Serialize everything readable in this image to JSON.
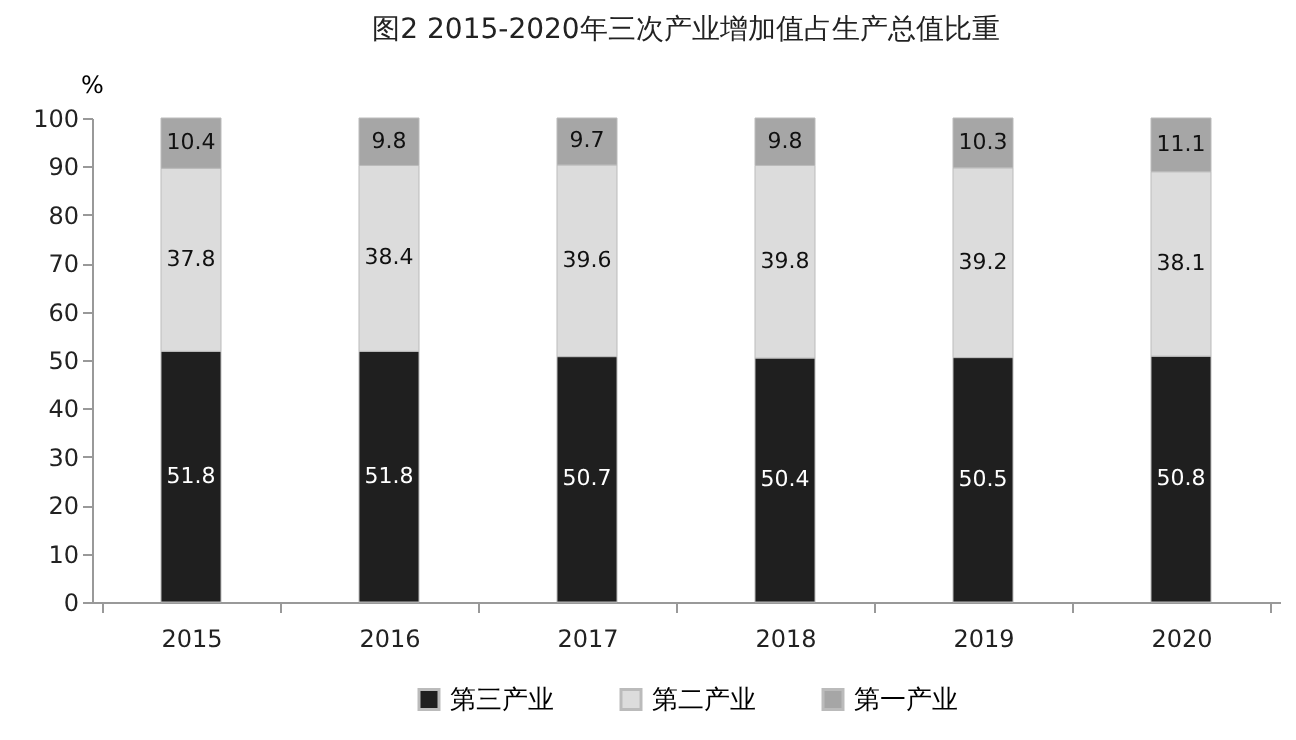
{
  "chart_data": {
    "type": "bar",
    "title": "图2 2015-2020年三次产业增加值占生产总值比重",
    "ylabel": "%",
    "categories": [
      "2015",
      "2016",
      "2017",
      "2018",
      "2019",
      "2020"
    ],
    "stacked": true,
    "series": [
      {
        "name": "第三产业",
        "color": "#1f1f1f",
        "values": [
          51.8,
          51.8,
          50.7,
          50.4,
          50.5,
          50.8
        ]
      },
      {
        "name": "第二产业",
        "color": "#dcdcdc",
        "values": [
          37.8,
          38.4,
          39.6,
          39.8,
          39.2,
          38.1
        ]
      },
      {
        "name": "第一产业",
        "color": "#a6a6a6",
        "values": [
          10.4,
          9.8,
          9.7,
          9.8,
          10.3,
          11.1
        ]
      }
    ],
    "ylim": [
      0,
      100
    ],
    "yticks": [
      0,
      10,
      20,
      30,
      40,
      50,
      60,
      70,
      80,
      90,
      100
    ],
    "grid": false,
    "legend": "bottom",
    "data_labels": true
  }
}
